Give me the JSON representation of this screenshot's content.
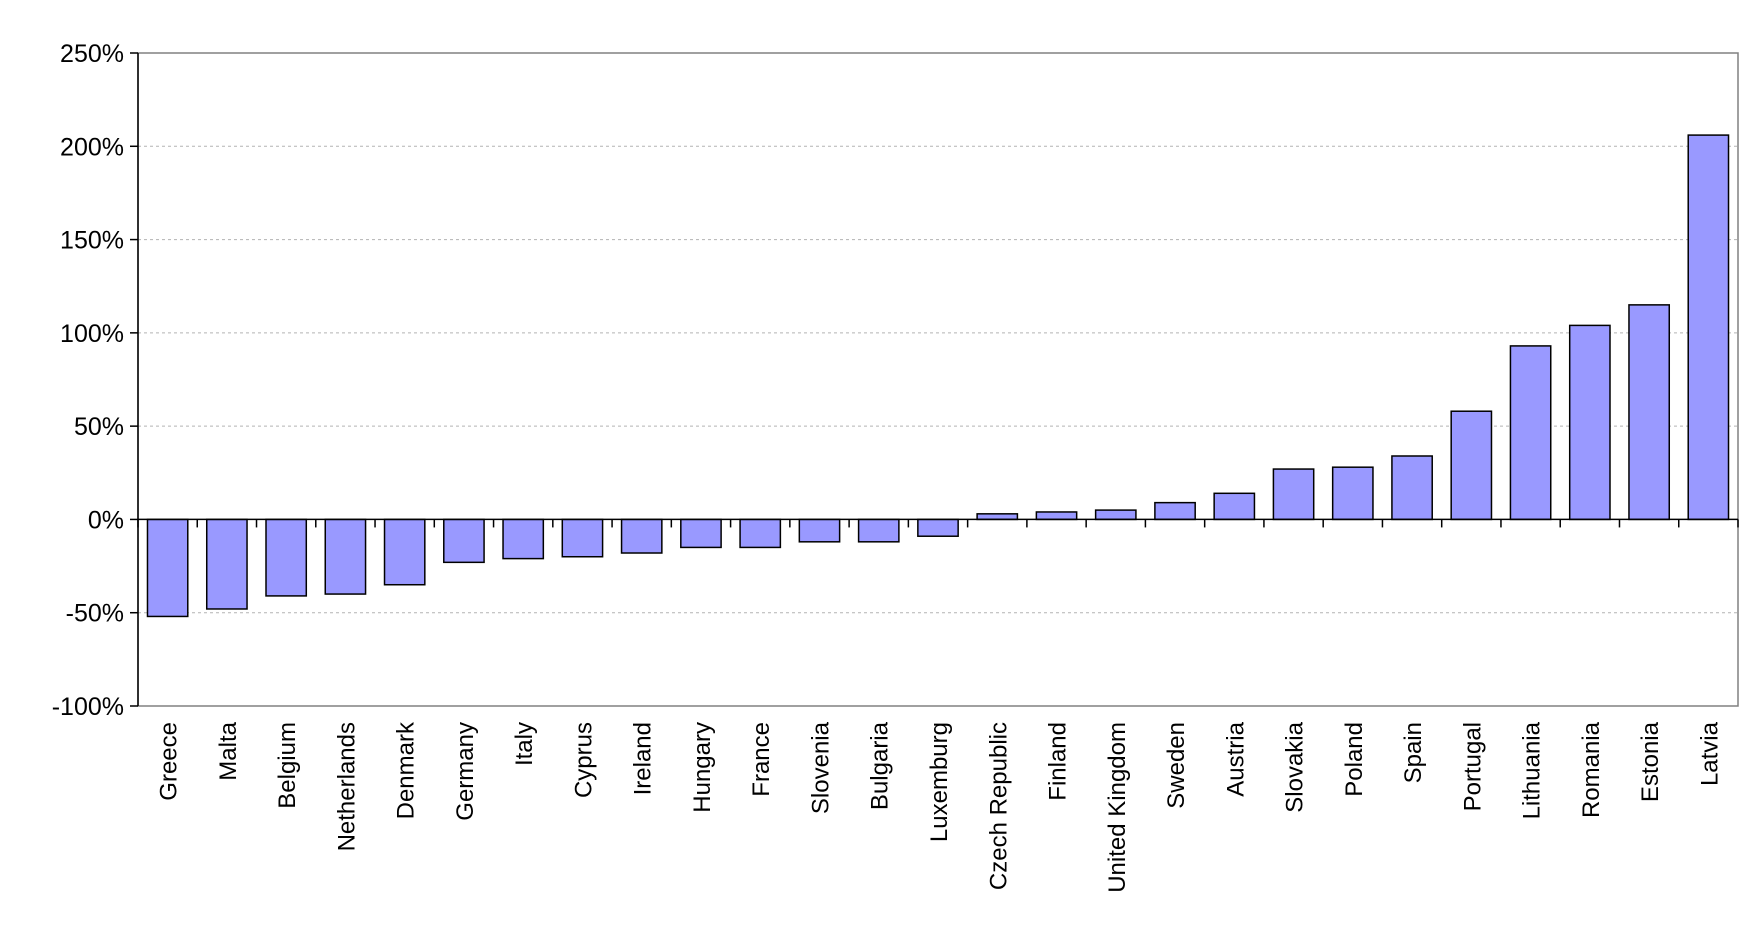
{
  "chart_data": {
    "type": "bar",
    "title": "",
    "xlabel": "",
    "ylabel": "",
    "categories": [
      "Greece",
      "Malta",
      "Belgium",
      "Netherlands",
      "Denmark",
      "Germany",
      "Italy",
      "Cyprus",
      "Ireland",
      "Hungary",
      "France",
      "Slovenia",
      "Bulgaria",
      "Luxemburg",
      "Czech Republic",
      "Finland",
      "United Kingdom",
      "Sweden",
      "Austria",
      "Slovakia",
      "Poland",
      "Spain",
      "Portugal",
      "Lithuania",
      "Romania",
      "Estonia",
      "Latvia"
    ],
    "values": [
      -52,
      -48,
      -41,
      -40,
      -35,
      -23,
      -21,
      -20,
      -18,
      -15,
      -15,
      -12,
      -12,
      -9,
      3,
      4,
      5,
      9,
      14,
      27,
      28,
      34,
      58,
      93,
      104,
      115,
      206
    ],
    "ylim": [
      -100,
      250
    ],
    "yticks": [
      -100,
      -50,
      0,
      50,
      100,
      150,
      200,
      250
    ],
    "ytick_suffix": "%",
    "grid": true,
    "bar_color": "#9999ff",
    "bar_stroke": "#000000"
  }
}
